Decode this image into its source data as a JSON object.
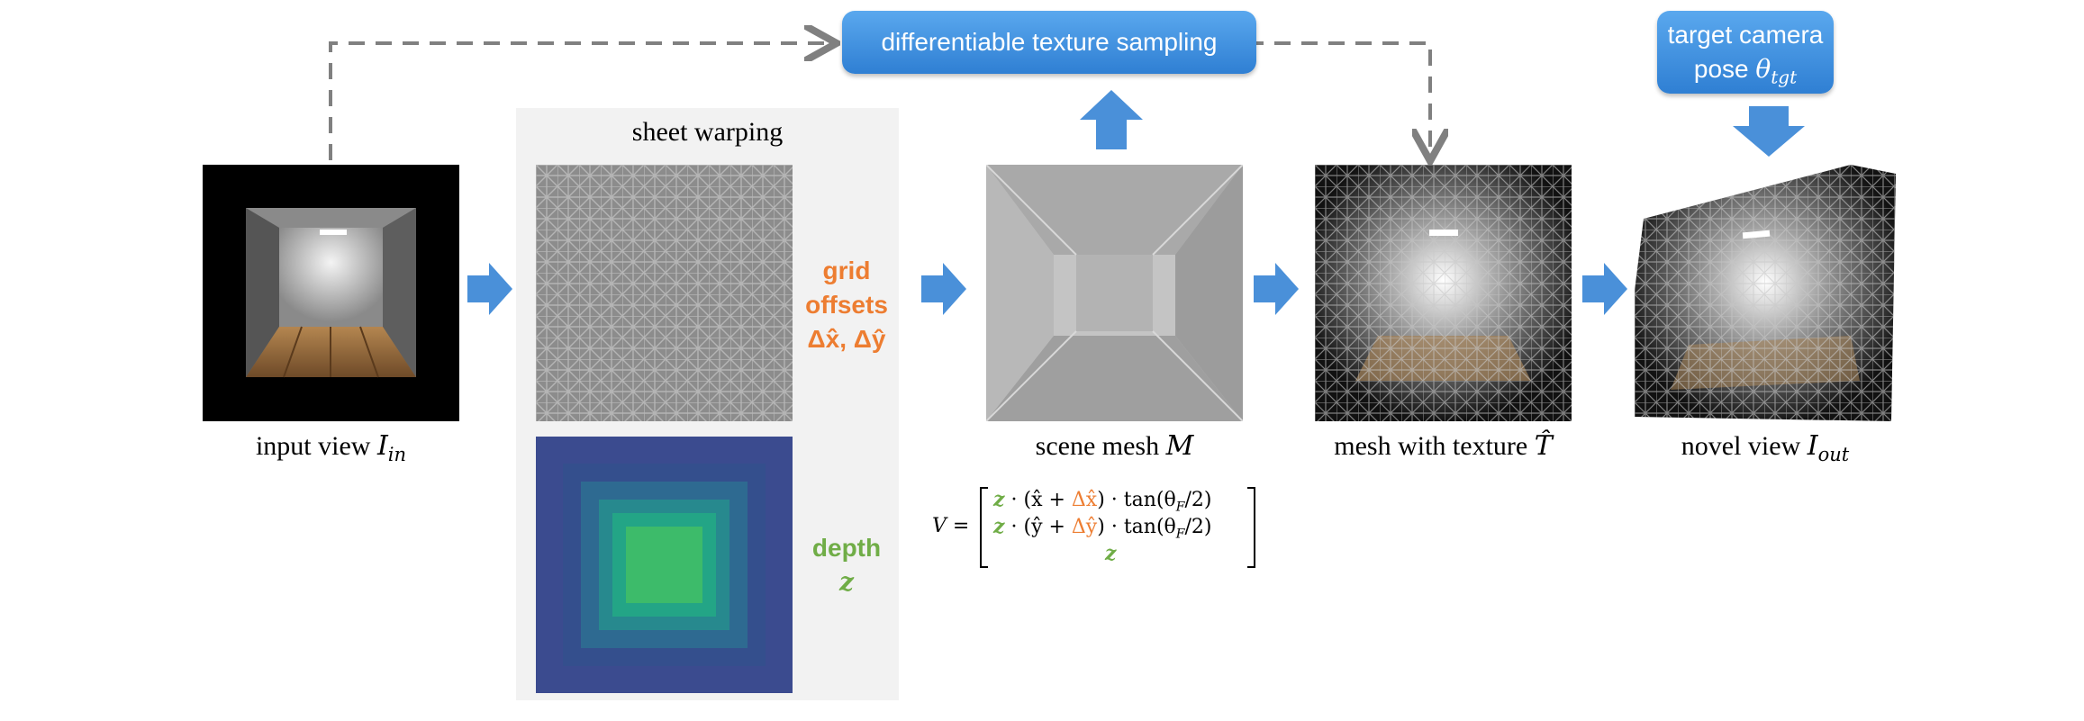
{
  "top_box": {
    "label": "differentiable texture sampling"
  },
  "camera_box": {
    "line1": "target camera",
    "line2_prefix": "pose ",
    "line2_symbol": "θ",
    "line2_sub": "tgt"
  },
  "panel": {
    "title": "sheet warping"
  },
  "grid_offsets": {
    "line1": "grid",
    "line2": "offsets",
    "line3": "Δx̂, Δŷ"
  },
  "depth": {
    "line1": "depth",
    "line2": "z"
  },
  "labels": {
    "input_text": "input view ",
    "input_sym": "I",
    "input_sub": "in",
    "mesh_text": "scene mesh ",
    "mesh_sym": "M",
    "texture_text": "mesh with texture ",
    "texture_sym": "T̂",
    "novel_text": "novel view ",
    "novel_sym": "I",
    "novel_sub": "out"
  },
  "equation": {
    "lhs": "V =",
    "row1": {
      "a": "z",
      "b": " · (x̂ + ",
      "c": "Δx̂",
      "d": ") · tan(θ",
      "e": "F",
      "f": "/2)"
    },
    "row2": {
      "a": "z",
      "b": " · (ŷ + ",
      "c": "Δŷ",
      "d": ") · tan(θ",
      "e": "F",
      "f": "/2)"
    },
    "row3": "z"
  },
  "colors": {
    "arrow": "#4a90d9",
    "offset": "#ed7d31",
    "depth": "#70ad47",
    "dashed": "#808080"
  }
}
